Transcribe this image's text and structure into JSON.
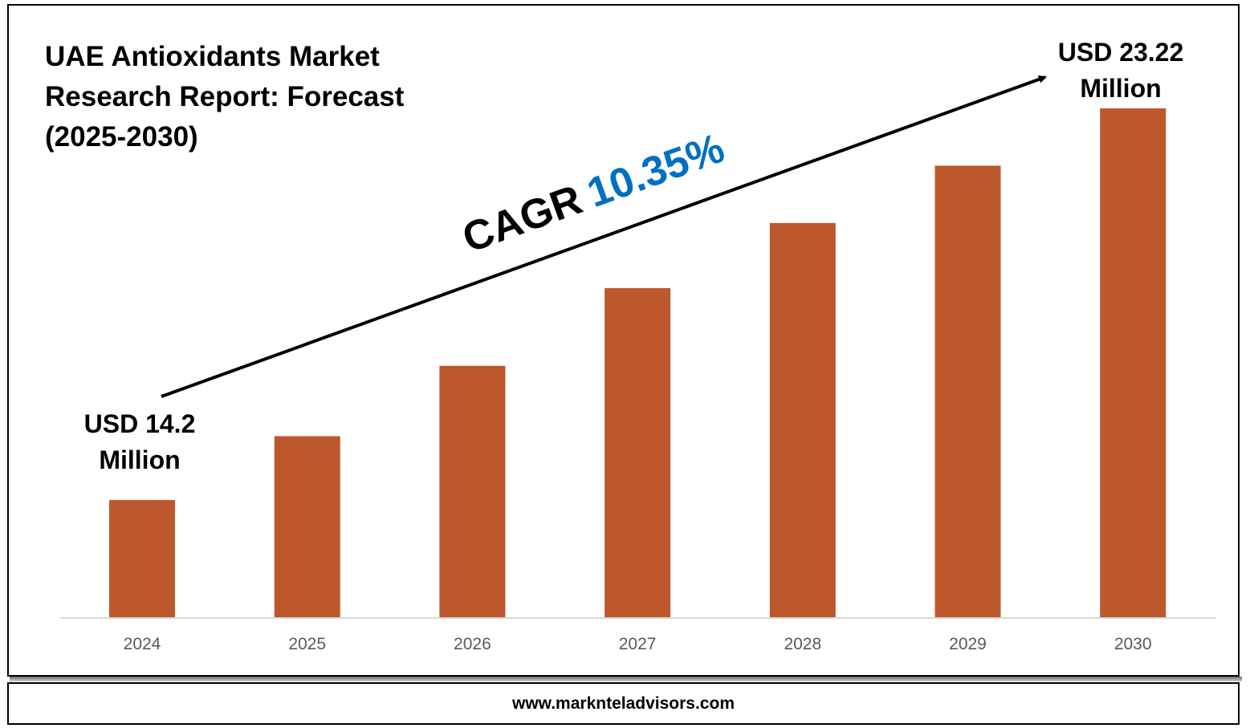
{
  "title": "UAE Antioxidants Market Research Report: Forecast (2025-2030)",
  "footer": {
    "url": "www.marknteladvisors.com"
  },
  "cagr": {
    "label": "CAGR",
    "value": "10.35%"
  },
  "annotations": {
    "start": [
      "USD 14.2",
      "Million"
    ],
    "end": [
      "USD 23.22",
      "Million"
    ]
  },
  "chart_data": {
    "type": "bar",
    "title": "UAE Antioxidants Market Research Report: Forecast (2025-2030)",
    "categories": [
      "2024",
      "2025",
      "2026",
      "2027",
      "2028",
      "2029",
      "2030"
    ],
    "values": [
      14.2,
      15.67,
      17.29,
      19.08,
      20.58,
      21.9,
      23.22
    ],
    "unit": "USD Million",
    "bar_color": "#bd582c",
    "ylim": [
      11.5,
      23.22
    ],
    "grid": false,
    "legend": "none"
  },
  "colors": {
    "bar": "#bd582c",
    "cagr_value": "#0070c0",
    "axis": "#d9d9d9"
  }
}
